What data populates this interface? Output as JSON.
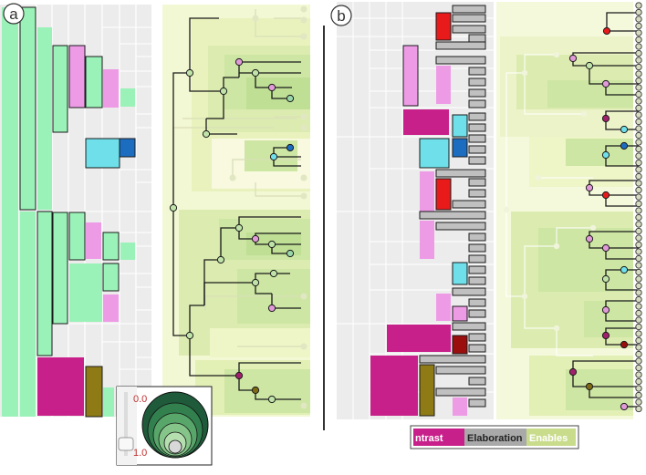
{
  "panels": {
    "a": {
      "label": "a"
    },
    "b": {
      "label": "b"
    }
  },
  "depth_slider": {
    "min_label": "0.0",
    "max_label": "1.0"
  },
  "legend": {
    "items": [
      {
        "label": "ntrast",
        "color": "#c8208a"
      },
      {
        "label": "Elaboration",
        "color": "#a9a9a9"
      },
      {
        "label": "Enables",
        "color": "#c9dc8c"
      }
    ]
  },
  "colors": {
    "green": "#9af2b8",
    "green_border": "#1a1a1a",
    "pink": "#ee9be6",
    "magenta": "#c8208a",
    "cyan": "#6fe0ea",
    "blue": "#1c6cc0",
    "olive": "#8f7b16",
    "red": "#e81a1a",
    "dark_red": "#9a0e0e",
    "gray": "#c0c0c0",
    "tree_bg": "#f0f6cf"
  }
}
